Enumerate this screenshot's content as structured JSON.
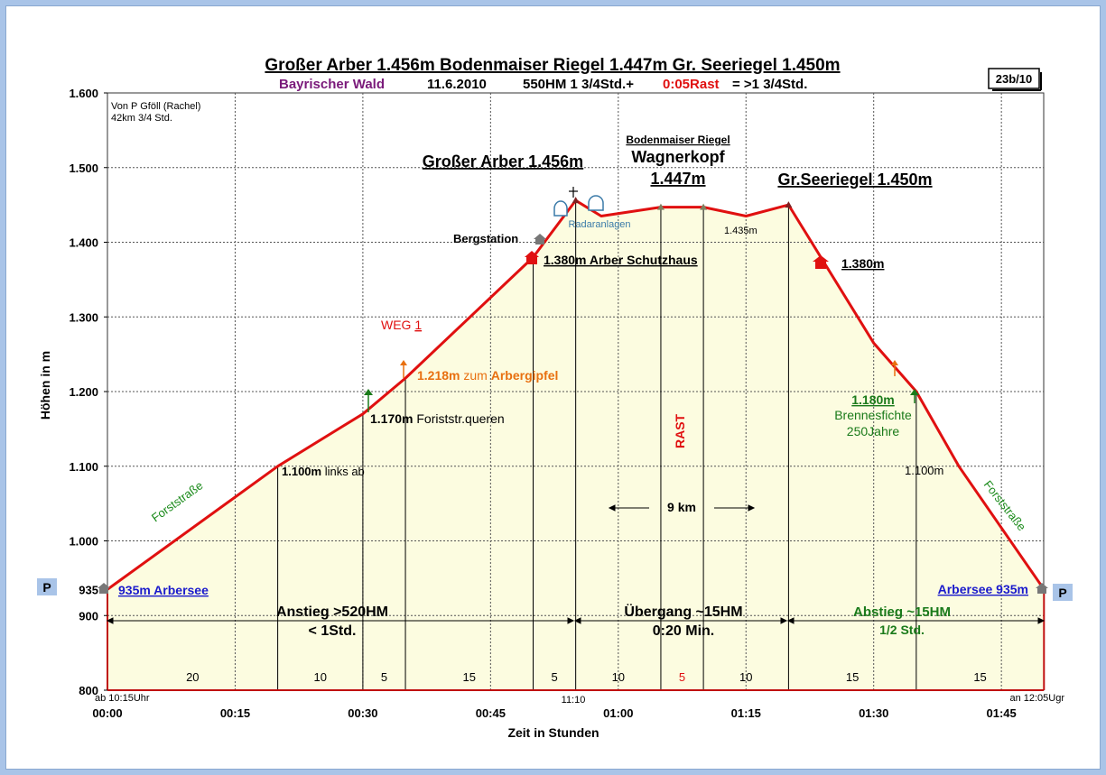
{
  "header": {
    "title": "Großer Arber 1.456m Bodenmaiser Riegel 1.447m Gr. Seeriegel 1.450m",
    "subtitle_region": "Bayrischer Wald",
    "subtitle_date": "11.6.2010",
    "subtitle_hm": "550HM  1 3/4Std.+",
    "subtitle_rast": "0:05Rast",
    "subtitle_total": "= >1 3/4Std.",
    "ref_box": "23b/10",
    "note_line1": "Von P Gföll (Rachel)",
    "note_line2": "42km 3/4 Std."
  },
  "colors": {
    "profile_line": "#e01010",
    "fill": "#fcfce0",
    "grid": "#555555",
    "title_purple": "#7a1a7a",
    "link_blue": "#1a1acc",
    "orange": "#e87010",
    "green": "#1a7a1a"
  },
  "chart_data": {
    "type": "area",
    "xlabel": "Zeit in Stunden",
    "ylabel": "Höhen in m",
    "xlim": [
      0,
      110
    ],
    "ylim": [
      800,
      1600
    ],
    "x_ticks": [
      {
        "m": 0,
        "label": "00:00"
      },
      {
        "m": 15,
        "label": "00:15"
      },
      {
        "m": 30,
        "label": "00:30"
      },
      {
        "m": 45,
        "label": "00:45"
      },
      {
        "m": 60,
        "label": "01:00"
      },
      {
        "m": 75,
        "label": "01:15"
      },
      {
        "m": 90,
        "label": "01:30"
      },
      {
        "m": 105,
        "label": "01:45"
      }
    ],
    "y_ticks": [
      {
        "v": 800,
        "label": "800"
      },
      {
        "v": 900,
        "label": "900"
      },
      {
        "v": 935,
        "label": "935"
      },
      {
        "v": 1000,
        "label": "1.000"
      },
      {
        "v": 1100,
        "label": "1.100"
      },
      {
        "v": 1200,
        "label": "1.200"
      },
      {
        "v": 1300,
        "label": "1.300"
      },
      {
        "v": 1400,
        "label": "1.400"
      },
      {
        "v": 1500,
        "label": "1.500"
      },
      {
        "v": 1600,
        "label": "1.600"
      }
    ],
    "profile": [
      {
        "x": 0,
        "y": 935
      },
      {
        "x": 20,
        "y": 1100
      },
      {
        "x": 30,
        "y": 1170
      },
      {
        "x": 35,
        "y": 1218
      },
      {
        "x": 50,
        "y": 1380
      },
      {
        "x": 55,
        "y": 1456
      },
      {
        "x": 58,
        "y": 1435
      },
      {
        "x": 65,
        "y": 1447
      },
      {
        "x": 70,
        "y": 1447
      },
      {
        "x": 75,
        "y": 1435
      },
      {
        "x": 80,
        "y": 1450
      },
      {
        "x": 90,
        "y": 1265
      },
      {
        "x": 95,
        "y": 1200
      },
      {
        "x": 100,
        "y": 1100
      },
      {
        "x": 110,
        "y": 935
      }
    ],
    "vertical_lines": [
      20,
      30,
      35,
      50,
      55,
      65,
      70,
      80,
      95
    ],
    "segments": [
      {
        "x": 10,
        "label": "20"
      },
      {
        "x": 25,
        "label": "10"
      },
      {
        "x": 32.5,
        "label": "5"
      },
      {
        "x": 42.5,
        "label": "15"
      },
      {
        "x": 52.5,
        "label": "5"
      },
      {
        "x": 60,
        "label": "10"
      },
      {
        "x": 67.5,
        "label": "5",
        "red": true
      },
      {
        "x": 75,
        "label": "10"
      },
      {
        "x": 87.5,
        "label": "15"
      },
      {
        "x": 102.5,
        "label": "15"
      }
    ],
    "time_labels": {
      "start": "ab 10:15Uhr",
      "mid": "11:10",
      "end": "an 12:05Ugr"
    }
  },
  "annotations": {
    "arber_title": "Großer Arber 1.456m",
    "riegel_small": "Bodenmaiser Riegel",
    "riegel_name": "Wagnerkopf",
    "riegel_height": "1.447m",
    "seeriegel_title": "Gr.Seeriegel 1.450m",
    "radar": "Radaranlagen",
    "bergstation": "Bergstation",
    "schutzhaus": "1.380m Arber Schutzhaus",
    "m1435": "1.435m",
    "m1380_right": "1.380m",
    "weg": "WEG ",
    "weg_num": "1",
    "arbergipfel_m": "1.218m",
    "arbergipfel_mid": " zum ",
    "arbergipfel_name": "Arbergipfel",
    "forststr_m": "1.170m",
    "forststr_text": " Foriststr.queren",
    "linksab_m": "1.100m",
    "linksab_text": " links ab",
    "rast": "RAST",
    "km": "9 km",
    "brenn_m": "1.180m",
    "brenn_1": "Brennesfichte",
    "brenn_2": "250Jahre",
    "m1100_right": "1.100m",
    "forst_left": "Forststraße",
    "forst_right": "Forststraße",
    "arbersee_left": "935m Arbersee",
    "arbersee_right": "Arbersee 935m",
    "p_left": "P",
    "p_right": "P",
    "anstieg_1": "Anstieg >520HM",
    "anstieg_2": "< 1Std.",
    "uebergang_1": "Übergang ~15HM",
    "uebergang_2": "0:20 Min.",
    "abstieg_1": "Abstieg ~15HM",
    "abstieg_2": "1/2 Std."
  }
}
